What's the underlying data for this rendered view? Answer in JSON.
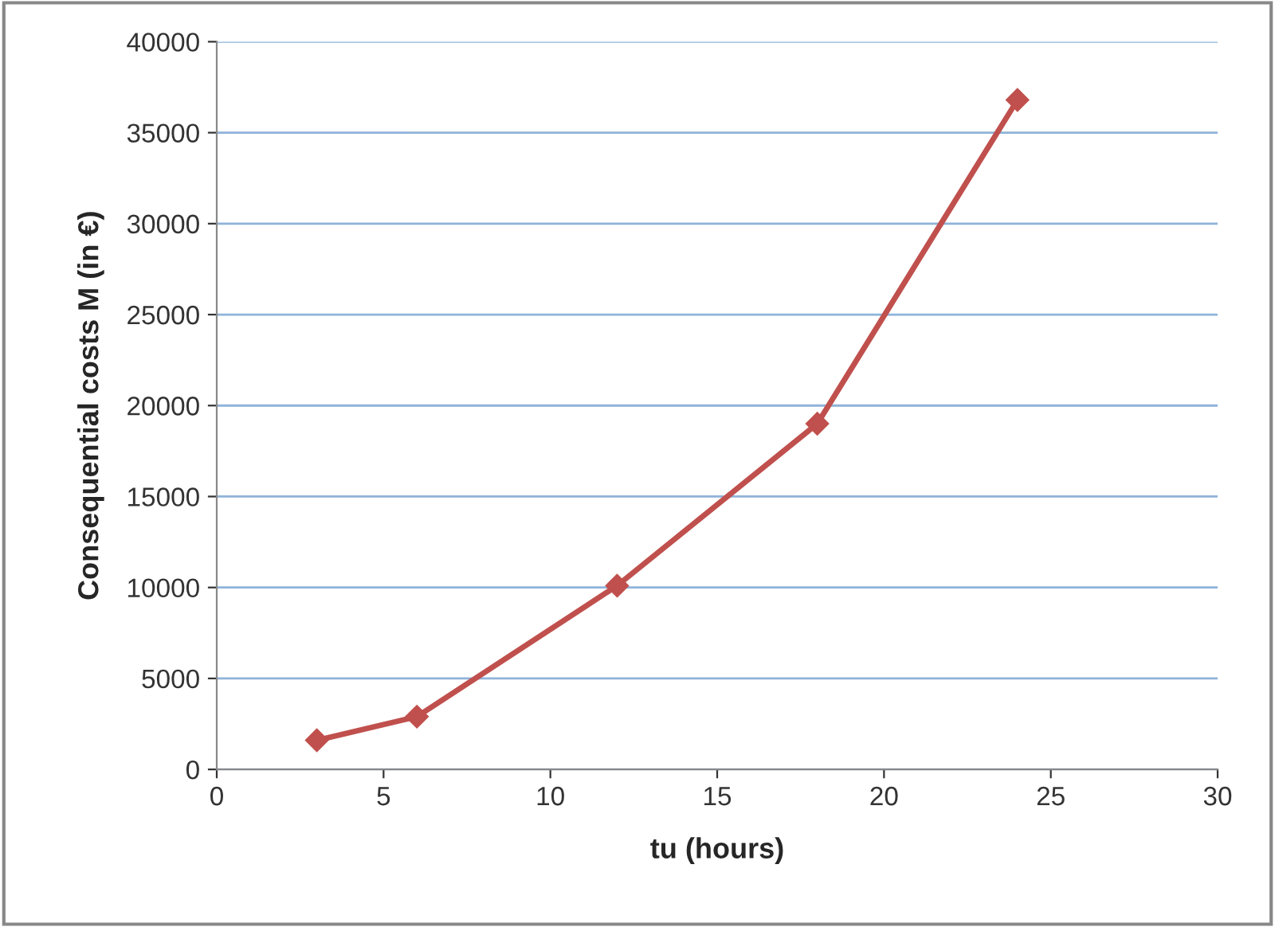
{
  "chart_data": {
    "type": "line",
    "xlabel": "tu (hours)",
    "ylabel": "Consequential costs M (in €)",
    "x": [
      3,
      6,
      12,
      18,
      24
    ],
    "series": [
      {
        "color": "#c0504d",
        "values": [
          1600,
          2900,
          10100,
          19000,
          36800
        ]
      }
    ],
    "xlim": [
      0,
      30
    ],
    "xticks": [
      0,
      5,
      10,
      15,
      20,
      25,
      30
    ],
    "ylim": [
      0,
      40000
    ],
    "yticks": [
      0,
      5000,
      10000,
      15000,
      20000,
      25000,
      30000,
      35000,
      40000
    ],
    "grid": "y",
    "marker": "diamond",
    "line_style": "solid",
    "legend": false
  }
}
